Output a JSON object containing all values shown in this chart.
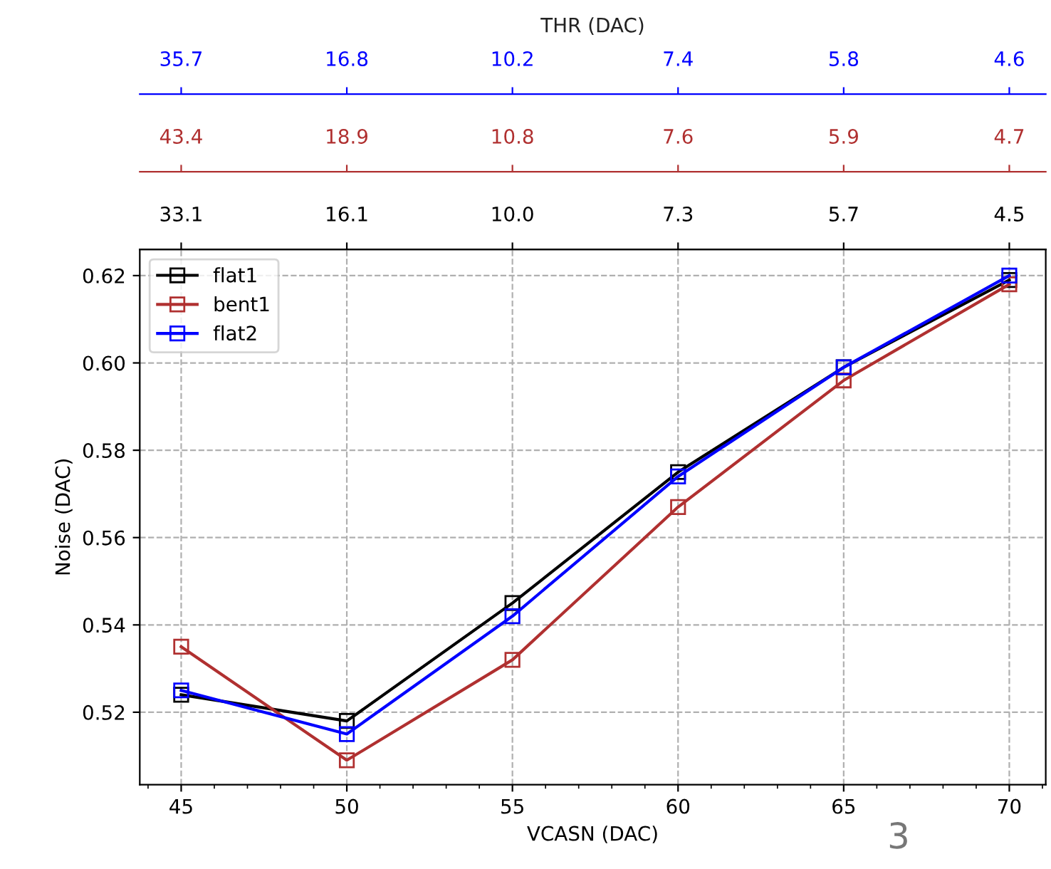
{
  "chart_data": {
    "type": "line",
    "xlabel": "VCASN (DAC)",
    "ylabel": "Noise (DAC)",
    "x": [
      45,
      50,
      55,
      60,
      65,
      70
    ],
    "series": [
      {
        "name": "flat1",
        "color": "#000000",
        "values": [
          0.524,
          0.518,
          0.545,
          0.575,
          0.599,
          0.619
        ]
      },
      {
        "name": "bent1",
        "color": "#b03030",
        "values": [
          0.535,
          0.509,
          0.532,
          0.567,
          0.596,
          0.618
        ]
      },
      {
        "name": "flat2",
        "color": "#0000ff",
        "values": [
          0.525,
          0.515,
          0.542,
          0.574,
          0.599,
          0.62
        ]
      }
    ],
    "xlim": [
      43.75,
      71.1
    ],
    "xticks": [
      45,
      50,
      55,
      60,
      65,
      70
    ],
    "ylim": [
      0.5034,
      0.626
    ],
    "yticks": [
      {
        "value": 0.52,
        "label": "0.52"
      },
      {
        "value": 0.54,
        "label": "0.54"
      },
      {
        "value": 0.56,
        "label": "0.56"
      },
      {
        "value": 0.58,
        "label": "0.58"
      },
      {
        "value": 0.6,
        "label": "0.60"
      },
      {
        "value": 0.62,
        "label": "0.62"
      }
    ],
    "x2label": "THR (DAC)",
    "annotations": [
      "33.1",
      "16.1",
      "10.0",
      "7.3",
      "5.7",
      "4.5",
      "43.4",
      "18.9",
      "10.8",
      "7.6",
      "5.9",
      "4.7",
      "35.7",
      "16.8",
      "10.2",
      "7.4",
      "5.8",
      "4.6",
      "3"
    ],
    "grid": true,
    "legend": "top left",
    "marker": "square",
    "line_style": "solid"
  }
}
